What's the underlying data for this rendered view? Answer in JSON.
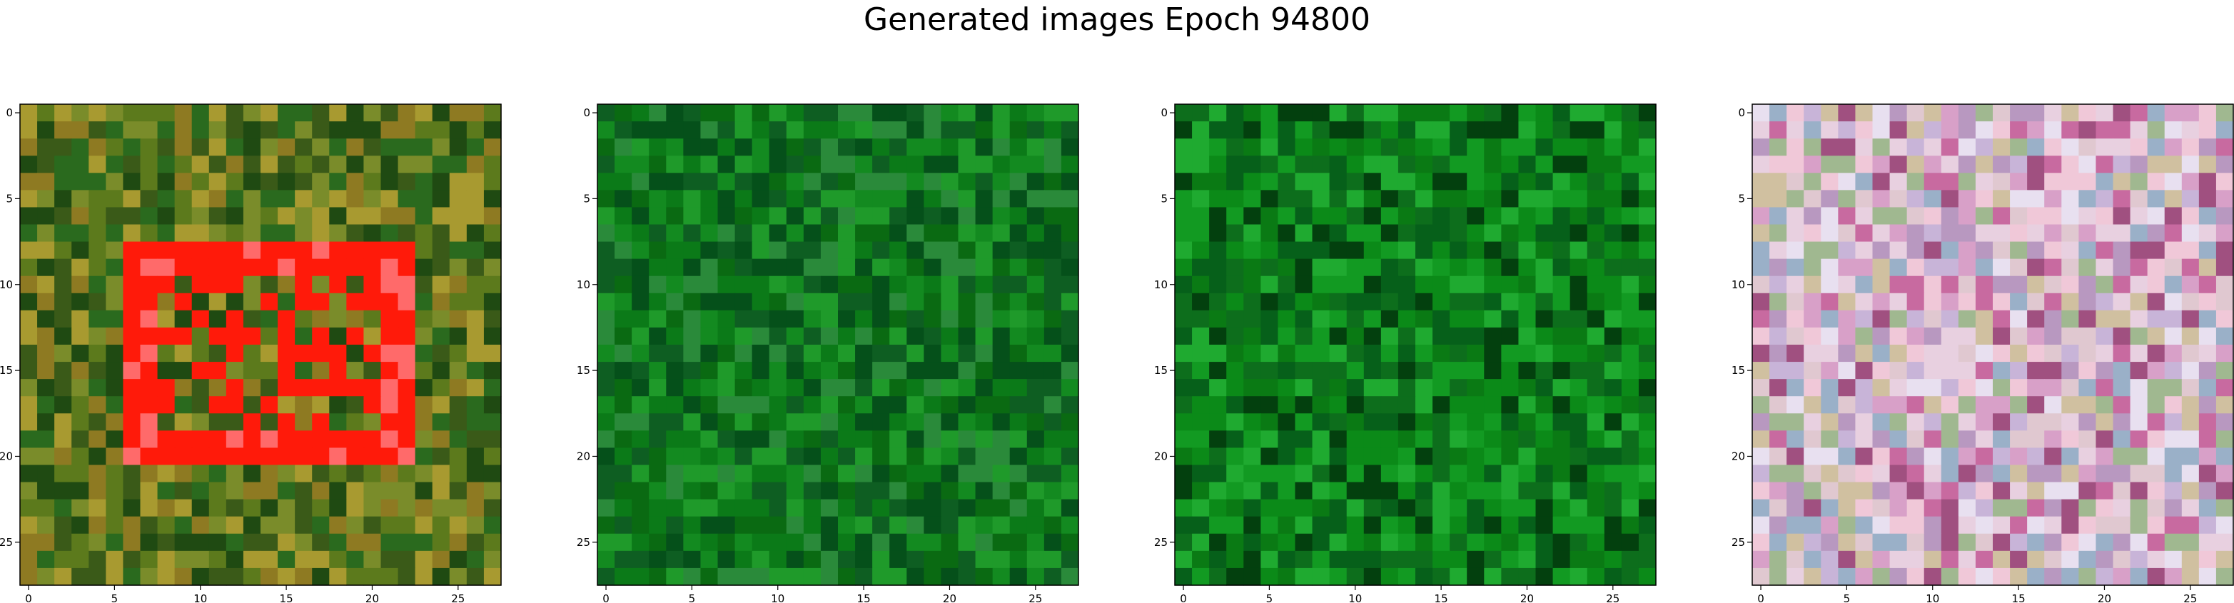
{
  "figure": {
    "title": "Generated images Epoch 94800"
  },
  "chart_data": [
    {
      "type": "heatmap",
      "subtype": "rgb-image",
      "grid_size": [
        28,
        28
      ],
      "xlim": [
        -0.5,
        27.5
      ],
      "ylim": [
        27.5,
        -0.5
      ],
      "x_ticks": [
        0,
        5,
        10,
        15,
        20,
        25
      ],
      "y_ticks": [
        0,
        5,
        10,
        15,
        20,
        25
      ],
      "palette": [
        "#3a5a18",
        "#5c7a1c",
        "#7a8c2a",
        "#8e7a22",
        "#2a6a1e",
        "#a89a30",
        "#1f4a12"
      ],
      "highlight": {
        "color": "#ff1a0a",
        "accent": "#ff6a6a",
        "rows": [
          8,
          20
        ],
        "cols": [
          6,
          22
        ],
        "thickness": 2
      },
      "grid": false
    },
    {
      "type": "heatmap",
      "subtype": "rgb-image",
      "grid_size": [
        28,
        28
      ],
      "xlim": [
        -0.5,
        27.5
      ],
      "ylim": [
        27.5,
        -0.5
      ],
      "x_ticks": [
        0,
        5,
        10,
        15,
        20,
        25
      ],
      "y_ticks": [
        0,
        5,
        10,
        15,
        20,
        25
      ],
      "palette": [
        "#0a6a12",
        "#0b7a18",
        "#138a20",
        "#05501a",
        "#1f9a2a",
        "#0e5e22",
        "#2a8a3a"
      ],
      "grid": false
    },
    {
      "type": "heatmap",
      "subtype": "rgb-image",
      "grid_size": [
        28,
        28
      ],
      "xlim": [
        -0.5,
        27.5
      ],
      "ylim": [
        27.5,
        -0.5
      ],
      "x_ticks": [
        0,
        5,
        10,
        15,
        20,
        25
      ],
      "y_ticks": [
        0,
        5,
        10,
        15,
        20,
        25
      ],
      "palette": [
        "#0a7a14",
        "#0b8a18",
        "#129a22",
        "#06601a",
        "#1faa30",
        "#0d6e1c",
        "#03400e"
      ],
      "grid": false
    },
    {
      "type": "heatmap",
      "subtype": "rgb-image",
      "grid_size": [
        28,
        28
      ],
      "xlim": [
        -0.5,
        27.5
      ],
      "ylim": [
        27.5,
        -0.5
      ],
      "x_ticks": [
        0,
        5,
        10,
        15,
        20,
        25
      ],
      "y_ticks": [
        0,
        5,
        10,
        15,
        20,
        25
      ],
      "palette": [
        "#d8a0c8",
        "#c8b4d8",
        "#e0c8d0",
        "#b898c0",
        "#a0b890",
        "#e8d0e0",
        "#c86aa0",
        "#9ab0c8",
        "#d0c0a0",
        "#e8e0f0",
        "#a05080",
        "#f0c8d8"
      ],
      "grid": false
    }
  ]
}
